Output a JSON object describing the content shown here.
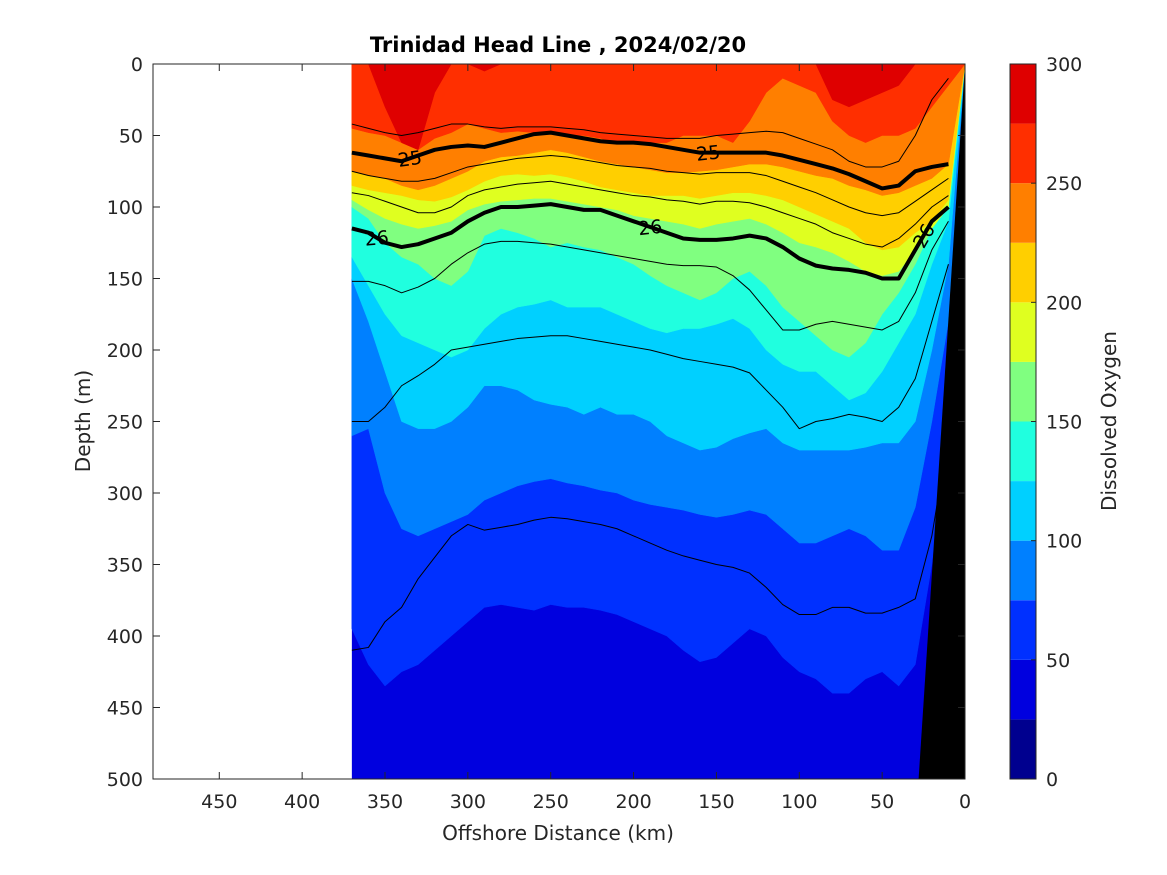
{
  "chart_data": {
    "type": "heatmap",
    "subtype": "filled-contour section",
    "title": "Trinidad Head Line , 2024/02/20",
    "xlabel": "Offshore Distance (km)",
    "ylabel": "Depth (m)",
    "xlim": [
      490,
      0
    ],
    "ylim": [
      0,
      500
    ],
    "x_reversed": true,
    "y_reversed": true,
    "x_ticks": [
      450,
      400,
      350,
      300,
      250,
      200,
      150,
      100,
      50,
      0
    ],
    "y_ticks": [
      0,
      50,
      100,
      150,
      200,
      250,
      300,
      350,
      400,
      450,
      500
    ],
    "colorbar": {
      "label": "Dissolved Oxygen",
      "ticks": [
        0,
        50,
        100,
        150,
        200,
        250,
        300
      ],
      "levels": [
        0,
        25,
        50,
        75,
        100,
        125,
        150,
        175,
        200,
        225,
        250,
        275,
        300
      ],
      "colors": [
        "#00008f",
        "#0000df",
        "#0030ff",
        "#0080ff",
        "#00d0ff",
        "#20ffdf",
        "#80ff80",
        "#dfff20",
        "#ffcf00",
        "#ff7f00",
        "#ff2f00",
        "#df0000"
      ]
    },
    "data_extent_km": [
      370,
      0
    ],
    "x": [
      370,
      360,
      350,
      340,
      330,
      320,
      310,
      300,
      290,
      280,
      270,
      260,
      250,
      240,
      230,
      220,
      210,
      200,
      190,
      180,
      170,
      160,
      150,
      140,
      130,
      120,
      110,
      100,
      90,
      80,
      70,
      60,
      50,
      40,
      30,
      20,
      10
    ],
    "oxygen_isoline_depths": [
      {
        "level": 275,
        "depths": [
          0,
          0,
          30,
          55,
          60,
          20,
          0,
          0,
          5,
          0,
          0,
          0,
          0,
          0,
          0,
          0,
          0,
          0,
          0,
          0,
          0,
          0,
          0,
          0,
          0,
          0,
          0,
          0,
          0,
          25,
          30,
          25,
          20,
          15,
          0,
          0,
          0
        ]
      },
      {
        "level": 250,
        "depths": [
          45,
          48,
          50,
          55,
          60,
          52,
          48,
          42,
          45,
          48,
          47,
          48,
          48,
          50,
          50,
          52,
          55,
          55,
          55,
          55,
          50,
          50,
          50,
          55,
          40,
          20,
          10,
          15,
          20,
          40,
          50,
          55,
          50,
          50,
          45,
          30,
          15
        ]
      },
      {
        "level": 225,
        "depths": [
          75,
          78,
          80,
          85,
          88,
          85,
          80,
          75,
          68,
          65,
          64,
          62,
          60,
          62,
          65,
          68,
          70,
          72,
          74,
          76,
          76,
          75,
          74,
          72,
          70,
          70,
          72,
          75,
          78,
          80,
          85,
          88,
          92,
          90,
          85,
          80,
          70
        ]
      },
      {
        "level": 200,
        "depths": [
          85,
          88,
          90,
          92,
          95,
          96,
          93,
          88,
          82,
          78,
          77,
          78,
          77,
          79,
          82,
          86,
          88,
          90,
          92,
          92,
          92,
          94,
          92,
          90,
          90,
          92,
          95,
          100,
          105,
          110,
          115,
          125,
          130,
          128,
          118,
          110,
          95
        ]
      },
      {
        "level": 175,
        "depths": [
          95,
          102,
          108,
          112,
          115,
          113,
          110,
          102,
          98,
          96,
          95,
          94,
          94,
          96,
          98,
          100,
          102,
          106,
          108,
          110,
          112,
          115,
          112,
          110,
          108,
          112,
          118,
          125,
          128,
          132,
          138,
          145,
          148,
          145,
          130,
          115,
          100
        ]
      },
      {
        "level": 150,
        "depths": [
          100,
          108,
          125,
          135,
          140,
          150,
          155,
          145,
          120,
          115,
          118,
          122,
          128,
          125,
          128,
          130,
          135,
          140,
          148,
          155,
          160,
          165,
          160,
          150,
          145,
          155,
          170,
          180,
          190,
          200,
          205,
          195,
          175,
          160,
          140,
          115,
          100
        ]
      },
      {
        "level": 125,
        "depths": [
          135,
          155,
          175,
          190,
          195,
          200,
          205,
          200,
          185,
          175,
          170,
          168,
          165,
          170,
          170,
          170,
          175,
          180,
          185,
          188,
          185,
          185,
          182,
          178,
          185,
          200,
          210,
          215,
          215,
          225,
          235,
          230,
          215,
          195,
          175,
          140,
          110
        ]
      },
      {
        "level": 100,
        "depths": [
          150,
          180,
          215,
          250,
          255,
          255,
          250,
          240,
          225,
          225,
          228,
          235,
          238,
          240,
          245,
          240,
          245,
          245,
          250,
          260,
          265,
          270,
          268,
          262,
          258,
          255,
          265,
          270,
          270,
          270,
          270,
          268,
          265,
          265,
          250,
          200,
          140
        ]
      },
      {
        "level": 75,
        "depths": [
          260,
          255,
          300,
          325,
          330,
          325,
          320,
          315,
          305,
          300,
          295,
          292,
          290,
          293,
          295,
          298,
          300,
          305,
          308,
          310,
          312,
          315,
          317,
          315,
          312,
          315,
          325,
          335,
          335,
          330,
          325,
          330,
          340,
          340,
          310,
          250,
          180
        ]
      },
      {
        "level": 50,
        "depths": [
          395,
          420,
          435,
          425,
          420,
          410,
          400,
          390,
          380,
          378,
          380,
          382,
          378,
          380,
          380,
          382,
          385,
          390,
          395,
          400,
          410,
          418,
          415,
          405,
          395,
          400,
          415,
          425,
          430,
          440,
          440,
          430,
          425,
          435,
          420,
          350,
          250
        ]
      }
    ],
    "isopycnal_depths": [
      {
        "level": 24.5,
        "labeled": false,
        "depths": [
          42,
          45,
          48,
          50,
          48,
          45,
          42,
          42,
          44,
          45,
          44,
          44,
          44,
          45,
          46,
          48,
          49,
          50,
          51,
          52,
          52,
          52,
          50,
          49,
          48,
          47,
          48,
          52,
          56,
          60,
          68,
          72,
          72,
          68,
          50,
          25,
          10
        ]
      },
      {
        "level": 25,
        "labeled": true,
        "depths": [
          62,
          64,
          66,
          68,
          64,
          60,
          58,
          57,
          58,
          55,
          52,
          49,
          48,
          50,
          52,
          54,
          55,
          55,
          56,
          58,
          60,
          62,
          62,
          62,
          62,
          62,
          64,
          67,
          70,
          73,
          77,
          82,
          87,
          85,
          75,
          72,
          70
        ]
      },
      {
        "level": 25.5,
        "labeled": false,
        "depths": [
          75,
          78,
          80,
          82,
          82,
          80,
          76,
          72,
          70,
          68,
          66,
          65,
          64,
          65,
          67,
          69,
          71,
          72,
          73,
          75,
          76,
          77,
          76,
          76,
          76,
          78,
          82,
          86,
          90,
          95,
          100,
          104,
          106,
          104,
          96,
          88,
          80
        ]
      },
      {
        "level": 25.75,
        "labeled": false,
        "depths": [
          90,
          92,
          96,
          100,
          104,
          104,
          100,
          92,
          88,
          86,
          84,
          83,
          82,
          84,
          86,
          88,
          90,
          92,
          93,
          95,
          96,
          98,
          96,
          96,
          97,
          100,
          104,
          108,
          112,
          118,
          122,
          126,
          128,
          122,
          112,
          100,
          92
        ]
      },
      {
        "level": 26,
        "labeled": true,
        "depths": [
          115,
          118,
          125,
          128,
          126,
          122,
          118,
          110,
          104,
          100,
          100,
          99,
          98,
          100,
          102,
          102,
          106,
          110,
          114,
          118,
          122,
          123,
          123,
          122,
          120,
          122,
          128,
          136,
          141,
          143,
          144,
          146,
          150,
          150,
          130,
          110,
          100
        ]
      },
      {
        "level": 26.25,
        "labeled": false,
        "depths": [
          152,
          152,
          155,
          160,
          156,
          150,
          140,
          132,
          126,
          124,
          124,
          125,
          126,
          128,
          130,
          132,
          134,
          136,
          138,
          140,
          141,
          141,
          142,
          148,
          158,
          172,
          186,
          186,
          182,
          180,
          182,
          184,
          186,
          180,
          160,
          130,
          110
        ]
      },
      {
        "level": 26.5,
        "labeled": false,
        "depths": [
          250,
          250,
          240,
          225,
          218,
          210,
          200,
          198,
          196,
          194,
          192,
          191,
          190,
          190,
          192,
          194,
          196,
          198,
          200,
          203,
          206,
          208,
          210,
          212,
          216,
          228,
          240,
          255,
          250,
          248,
          245,
          247,
          250,
          240,
          220,
          180,
          140
        ]
      },
      {
        "level": 26.75,
        "labeled": false,
        "depths": [
          410,
          408,
          390,
          380,
          360,
          345,
          330,
          322,
          326,
          324,
          322,
          319,
          317,
          318,
          320,
          322,
          325,
          330,
          335,
          340,
          344,
          347,
          350,
          352,
          356,
          366,
          378,
          385,
          385,
          380,
          380,
          384,
          384,
          380,
          374,
          330,
          260
        ]
      }
    ],
    "bathymetry": {
      "surface_km": 0,
      "bottom_km": 28,
      "color": "#000000"
    }
  }
}
